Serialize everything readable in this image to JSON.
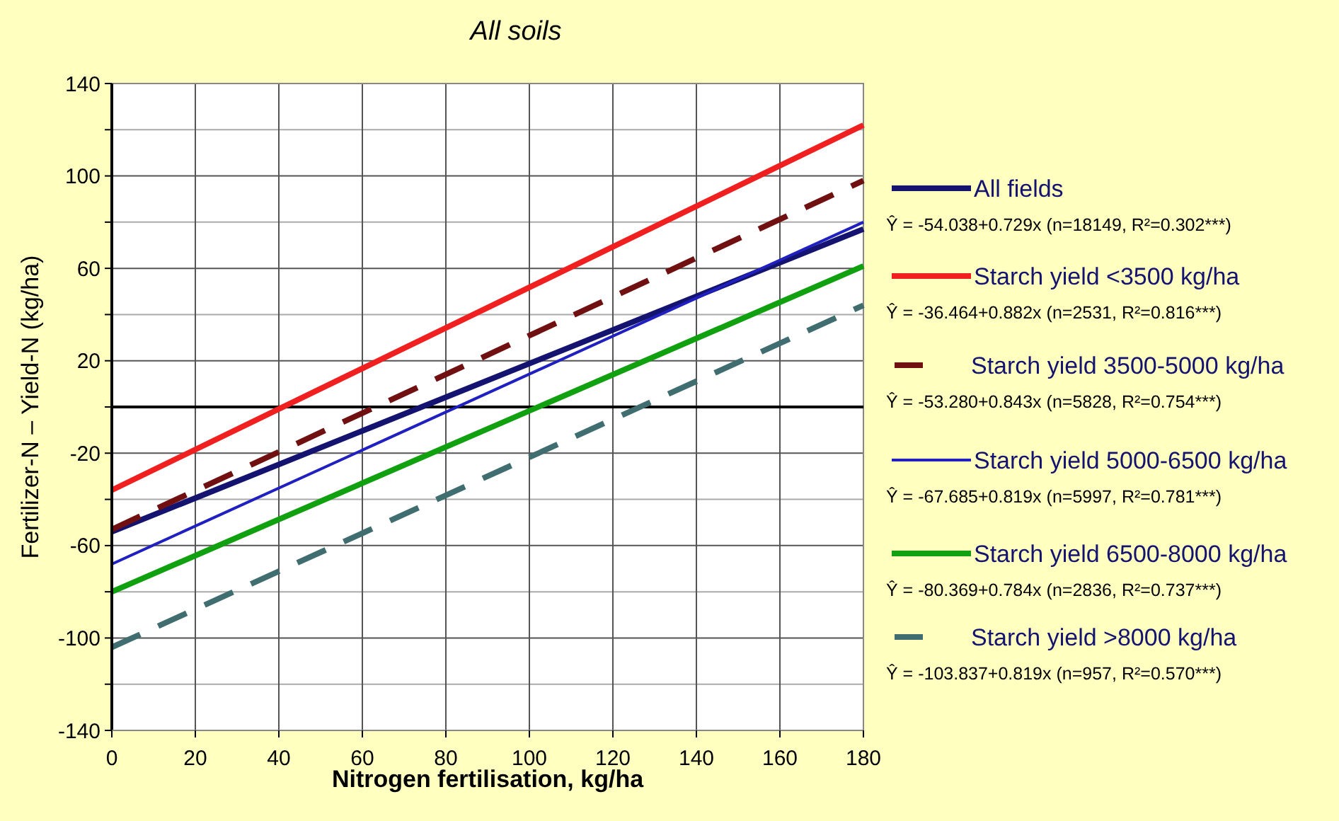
{
  "chart_data": {
    "type": "line",
    "title": "All soils",
    "xlabel": "Nitrogen fertilisation, kg/ha",
    "ylabel": "Fertilizer-N – Yield-N (kg/ha)",
    "x": [
      0,
      180
    ],
    "series": [
      {
        "name": "All fields",
        "color": "#141470",
        "values": [
          -54,
          77
        ]
      },
      {
        "name": "Starch yield <3500 kg/ha",
        "color": "#f02020",
        "values": [
          -36,
          122
        ]
      },
      {
        "name": "Starch yield 3500-5000 kg/ha",
        "color": "#701010",
        "values": [
          -53,
          98
        ],
        "line_style": "dashed"
      },
      {
        "name": "Starch yield 5000-6500 kg/ha",
        "color": "#2020c0",
        "values": [
          -68,
          80
        ]
      },
      {
        "name": "Starch yield 6500-8000 kg/ha",
        "color": "#10a010",
        "values": [
          -80,
          61
        ]
      },
      {
        "name": "Starch yield >8000 kg/ha",
        "color": "#406e70",
        "values": [
          -104,
          44
        ],
        "line_style": "dashed"
      }
    ],
    "annotations": [
      "Ŷ = -54.038+0.729x (n=18149, R²=0.302***)",
      "Ŷ = -36.464+0.882x (n=2531, R²=0.816***)",
      "Ŷ = -53.280+0.843x (n=5828, R²=0.754***)",
      "Ŷ = -67.685+0.819x (n=5997, R²=0.781***)",
      "Ŷ = -80.369+0.784x (n=2836, R²=0.737***)",
      "Ŷ = -103.837+0.819x (n=957, R²=0.570***)"
    ],
    "xlim": [
      0,
      180
    ],
    "xticks": [
      0,
      20,
      40,
      60,
      80,
      100,
      120,
      140,
      160,
      180
    ],
    "ylim": [
      -140,
      140
    ],
    "yticks": [
      -140,
      {
        "value": -120,
        "label": null
      },
      -100,
      {
        "value": -80,
        "label": null
      },
      -60,
      {
        "value": -40,
        "label": null
      },
      -20,
      {
        "value": 0,
        "label": null
      },
      20,
      {
        "value": 40,
        "label": null
      },
      60,
      {
        "value": 80,
        "label": null
      },
      100,
      {
        "value": 120,
        "label": null
      },
      140
    ],
    "ref_lines": [
      {
        "axis": "y",
        "value": 0,
        "color": "#000000"
      }
    ],
    "grid": true,
    "legend": "right",
    "line_style": "solid"
  }
}
